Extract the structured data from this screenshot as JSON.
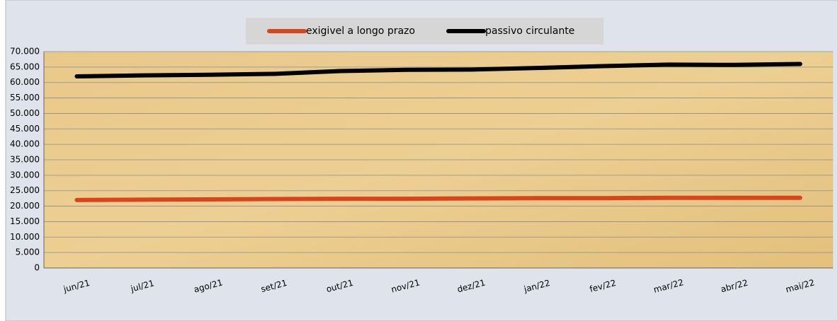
{
  "chart_data": {
    "type": "line",
    "categories": [
      "jun/21",
      "jul/21",
      "ago/21",
      "set/21",
      "out/21",
      "nov/21",
      "dez/21",
      "jan/22",
      "fev/22",
      "mar/22",
      "abr/22",
      "mai/22"
    ],
    "series": [
      {
        "name": "exigivel a longo prazo",
        "color": "#d9441c",
        "values": [
          22000,
          22100,
          22200,
          22300,
          22400,
          22400,
          22500,
          22600,
          22600,
          22700,
          22700,
          22700
        ]
      },
      {
        "name": "passivo circulante",
        "color": "#000000",
        "values": [
          62000,
          62300,
          62500,
          62800,
          63700,
          64100,
          64200,
          64700,
          65300,
          65800,
          65700,
          66000
        ]
      }
    ],
    "ylim": [
      0,
      70000
    ],
    "yticks": [
      0,
      {
        "value": 5000,
        "label": "5.000"
      },
      {
        "value": 10000,
        "label": "10.000"
      },
      {
        "value": 15000,
        "label": "15.000"
      },
      {
        "value": 20000,
        "label": "20.000"
      },
      {
        "value": 25000,
        "label": "25.000"
      },
      {
        "value": 30000,
        "label": "30.000"
      },
      {
        "value": 35000,
        "label": "35.000"
      },
      {
        "value": 40000,
        "label": "40.000"
      },
      {
        "value": 45000,
        "label": "45.000"
      },
      {
        "value": 50000,
        "label": "50.000"
      },
      {
        "value": 55000,
        "label": "55.000"
      },
      {
        "value": 60000,
        "label": "60.000"
      },
      {
        "value": 65000,
        "label": "65.000"
      },
      {
        "value": 70000,
        "label": "70.000"
      }
    ],
    "grid": true,
    "legend": "top"
  }
}
